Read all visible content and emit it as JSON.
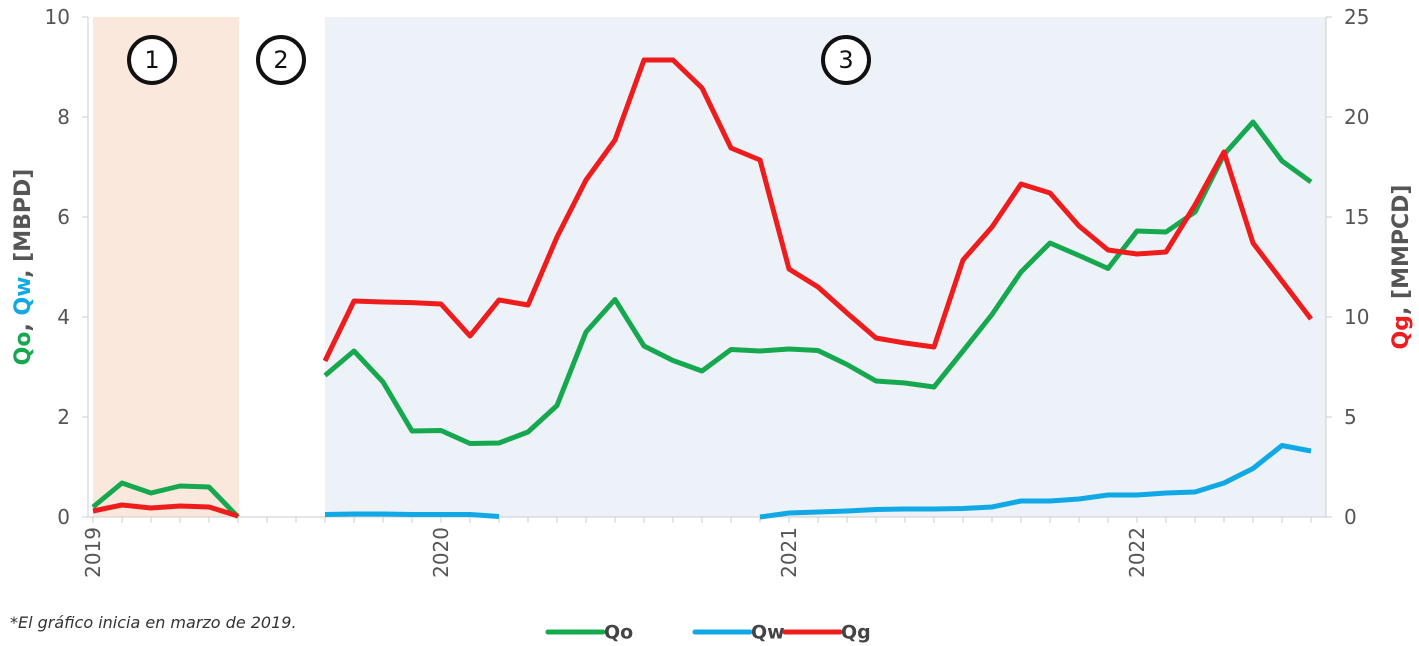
{
  "chart_data": {
    "type": "line",
    "note": "*El gráfico inicia en marzo de 2019.",
    "region_labels": [
      "1",
      "2",
      "3"
    ],
    "ylabel": [
      {
        "text": "Qo",
        "color": "#16a84e"
      },
      {
        "text": ", ",
        "color": "#555555"
      },
      {
        "text": "Qw",
        "color": "#10a9e6"
      },
      {
        "text": ", [MBPD]",
        "color": "#555555"
      }
    ],
    "y2label": [
      {
        "text": "Qg",
        "color": "#ee1c1c"
      },
      {
        "text": ", [MMPCD]",
        "color": "#555555"
      }
    ],
    "categories": [
      "2019",
      null,
      null,
      null,
      null,
      null,
      null,
      null,
      null,
      null,
      null,
      null,
      "2020",
      null,
      null,
      null,
      null,
      null,
      null,
      null,
      null,
      null,
      null,
      null,
      "2021",
      null,
      null,
      null,
      null,
      null,
      null,
      null,
      null,
      null,
      null,
      null,
      "2022",
      null,
      null,
      null,
      null,
      null,
      null
    ],
    "ylim": [
      0,
      10
    ],
    "yticks": [
      0,
      2,
      4,
      6,
      8,
      10
    ],
    "y2lim": [
      0,
      25
    ],
    "y2ticks": [
      0,
      5,
      10,
      15,
      20,
      25
    ],
    "series": [
      {
        "name": "Qo",
        "color": "#16a84e",
        "values": [
          0.2,
          0.68,
          0.48,
          0.62,
          0.6,
          0.0,
          null,
          null,
          2.83,
          3.32,
          2.7,
          1.72,
          1.73,
          1.47,
          1.48,
          1.7,
          2.23,
          3.7,
          4.35,
          3.42,
          3.13,
          2.92,
          3.35,
          3.32,
          3.36,
          3.33,
          3.05,
          2.72,
          2.68,
          2.6,
          3.32,
          4.05,
          4.9,
          5.48,
          5.23,
          4.97,
          5.72,
          5.7,
          6.1,
          7.25,
          7.9,
          7.12,
          6.7
        ]
      },
      {
        "name": "Qw",
        "color": "#10a9e6",
        "values": [
          null,
          null,
          null,
          null,
          null,
          null,
          null,
          null,
          0.05,
          0.06,
          0.06,
          0.05,
          0.05,
          0.05,
          0.01,
          null,
          null,
          null,
          null,
          null,
          null,
          null,
          null,
          0.0,
          0.08,
          0.1,
          0.12,
          0.15,
          0.16,
          0.16,
          0.17,
          0.2,
          0.32,
          0.32,
          0.36,
          0.44,
          0.44,
          0.48,
          0.5,
          0.68,
          0.97,
          1.43,
          1.32
        ]
      },
      {
        "name": "Qg",
        "color": "#ee1c1c",
        "axis": "y2",
        "values": [
          0.3,
          0.6,
          0.45,
          0.55,
          0.5,
          0.05,
          null,
          null,
          7.8,
          10.8,
          10.75,
          10.72,
          10.65,
          9.05,
          10.85,
          10.6,
          14.0,
          16.85,
          18.85,
          22.85,
          22.85,
          21.45,
          18.45,
          17.85,
          12.4,
          11.5,
          10.2,
          8.95,
          8.7,
          8.5,
          12.85,
          14.5,
          16.65,
          16.2,
          14.55,
          13.35,
          13.15,
          13.25,
          15.6,
          18.25,
          13.7,
          11.8,
          9.9
        ]
      }
    ]
  }
}
